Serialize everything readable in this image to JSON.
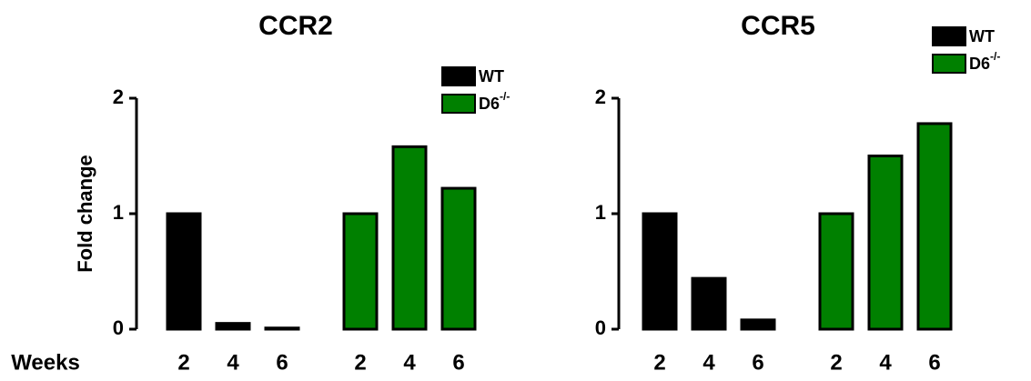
{
  "chart_data": [
    {
      "type": "bar",
      "title": "CCR2",
      "y_label": "Fold change",
      "x_label": "Weeks",
      "categories": [
        "2",
        "4",
        "6",
        "2",
        "4",
        "6"
      ],
      "series": [
        {
          "name": "WT",
          "color": "#000000",
          "values": [
            1,
            0.05,
            0.01,
            null,
            null,
            null
          ]
        },
        {
          "name": "D6",
          "name_superscript": "-/-",
          "color": "#008000",
          "values": [
            null,
            null,
            null,
            1,
            1.58,
            1.22
          ]
        }
      ],
      "ylim": [
        0,
        2
      ],
      "yticks": [
        0,
        1,
        2
      ],
      "legend": "top-right"
    },
    {
      "type": "bar",
      "title": "CCR5",
      "categories": [
        "2",
        "4",
        "6",
        "2",
        "4",
        "6"
      ],
      "series": [
        {
          "name": "WT",
          "color": "#000000",
          "values": [
            1,
            0.44,
            0.08,
            null,
            null,
            null
          ]
        },
        {
          "name": "D6",
          "name_superscript": "-/-",
          "color": "#008000",
          "values": [
            null,
            null,
            null,
            1,
            1.5,
            1.78
          ]
        }
      ],
      "ylim": [
        0,
        2
      ],
      "yticks": [
        0,
        1,
        2
      ],
      "legend": "top-right"
    }
  ]
}
